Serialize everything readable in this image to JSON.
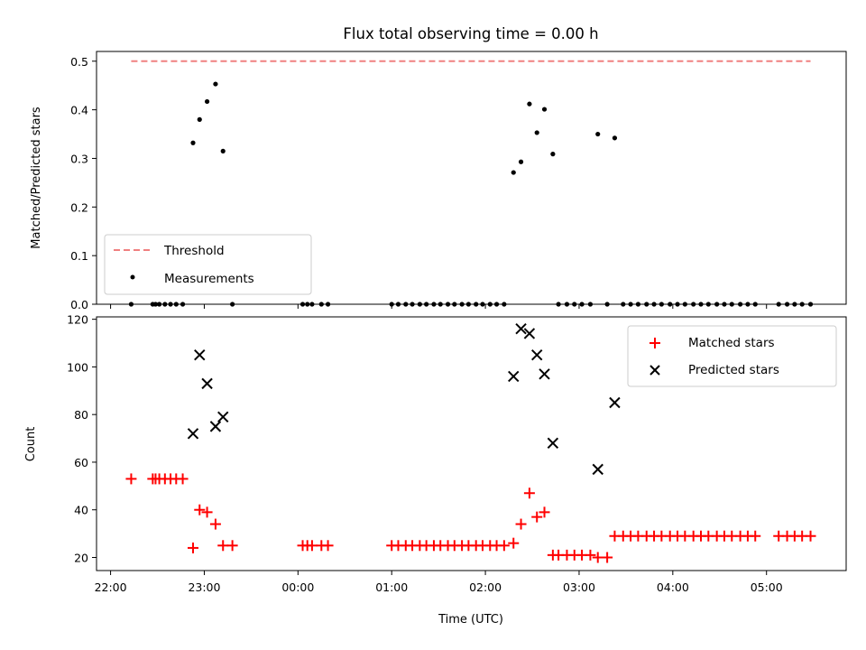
{
  "chart_data": [
    {
      "type": "scatter",
      "title": "Flux total observing time = 0.00 h",
      "xlabel": "",
      "ylabel": "Matched/Predicted stars",
      "ylim": [
        0,
        0.52
      ],
      "yticks": [
        "0.0",
        "0.1",
        "0.2",
        "0.3",
        "0.4",
        "0.5"
      ],
      "ytick_values": [
        0,
        0.1,
        0.2,
        0.3,
        0.4,
        0.5
      ],
      "xlim_hours": [
        21.85,
        29.85
      ],
      "legend_position": "lower-left",
      "threshold": {
        "name": "Threshold",
        "value": 0.5,
        "x_start": 22.22,
        "x_end": 29.47,
        "color": "#f08080"
      },
      "series": [
        {
          "name": "Measurements",
          "color": "#000000",
          "marker": "dot",
          "x": [
            22.22,
            22.45,
            22.48,
            22.52,
            22.58,
            22.64,
            22.7,
            22.77,
            22.88,
            22.95,
            23.03,
            23.12,
            23.2,
            23.3,
            24.05,
            24.1,
            24.15,
            24.25,
            24.32,
            25.0,
            25.07,
            25.15,
            25.22,
            25.3,
            25.37,
            25.45,
            25.52,
            25.6,
            25.67,
            25.75,
            25.82,
            25.9,
            25.97,
            26.05,
            26.12,
            26.2,
            26.3,
            26.38,
            26.47,
            26.55,
            26.63,
            26.72,
            26.78,
            26.87,
            26.95,
            27.03,
            27.12,
            27.2,
            27.3,
            27.38,
            27.47,
            27.55,
            27.63,
            27.72,
            27.8,
            27.88,
            27.97,
            28.05,
            28.13,
            28.22,
            28.3,
            28.38,
            28.47,
            28.55,
            28.63,
            28.72,
            28.8,
            28.88,
            29.13,
            29.22,
            29.3,
            29.38,
            29.47
          ],
          "y": [
            0,
            0,
            0,
            0,
            0,
            0,
            0,
            0,
            0.332,
            0.38,
            0.417,
            0.453,
            0.315,
            0,
            0,
            0,
            0,
            0,
            0,
            0,
            0,
            0,
            0,
            0,
            0,
            0,
            0,
            0,
            0,
            0,
            0,
            0,
            0,
            0,
            0,
            0,
            0.271,
            0.293,
            0.412,
            0.353,
            0.401,
            0.309,
            0,
            0,
            0,
            0,
            0,
            0.35,
            0,
            0.342,
            0,
            0,
            0,
            0,
            0,
            0,
            0,
            0,
            0,
            0,
            0,
            0,
            0,
            0,
            0,
            0,
            0,
            0,
            0,
            0,
            0,
            0,
            0
          ]
        }
      ]
    },
    {
      "type": "scatter",
      "title": "",
      "xlabel": "Time (UTC)",
      "ylabel": "Count",
      "ylim": [
        14.5,
        121
      ],
      "yticks": [
        "20",
        "40",
        "60",
        "80",
        "100",
        "120"
      ],
      "ytick_values": [
        20,
        40,
        60,
        80,
        100,
        120
      ],
      "xlim_hours": [
        21.85,
        29.85
      ],
      "xticks": [
        "22:00",
        "23:00",
        "00:00",
        "01:00",
        "02:00",
        "03:00",
        "04:00",
        "05:00"
      ],
      "xtick_hours": [
        22,
        23,
        24,
        25,
        26,
        27,
        28,
        29
      ],
      "legend_position": "top-right",
      "series": [
        {
          "name": "Matched stars",
          "color": "#ff0000",
          "marker": "plus",
          "x": [
            22.22,
            22.45,
            22.48,
            22.52,
            22.58,
            22.64,
            22.7,
            22.77,
            22.88,
            22.95,
            23.03,
            23.12,
            23.2,
            23.3,
            24.05,
            24.1,
            24.15,
            24.25,
            24.32,
            25.0,
            25.07,
            25.15,
            25.22,
            25.3,
            25.37,
            25.45,
            25.52,
            25.6,
            25.67,
            25.75,
            25.82,
            25.9,
            25.97,
            26.05,
            26.12,
            26.2,
            26.3,
            26.38,
            26.47,
            26.55,
            26.63,
            26.72,
            26.78,
            26.87,
            26.95,
            27.03,
            27.12,
            27.2,
            27.3,
            27.38,
            27.47,
            27.55,
            27.63,
            27.72,
            27.8,
            27.88,
            27.97,
            28.05,
            28.13,
            28.22,
            28.3,
            28.38,
            28.47,
            28.55,
            28.63,
            28.72,
            28.8,
            28.88,
            29.13,
            29.22,
            29.3,
            29.38,
            29.47
          ],
          "y": [
            53,
            53,
            53,
            53,
            53,
            53,
            53,
            53,
            24,
            40,
            39,
            34,
            25,
            25,
            25,
            25,
            25,
            25,
            25,
            25,
            25,
            25,
            25,
            25,
            25,
            25,
            25,
            25,
            25,
            25,
            25,
            25,
            25,
            25,
            25,
            25,
            26,
            34,
            47,
            37,
            39,
            21,
            21,
            21,
            21,
            21,
            21,
            20,
            20,
            29,
            29,
            29,
            29,
            29,
            29,
            29,
            29,
            29,
            29,
            29,
            29,
            29,
            29,
            29,
            29,
            29,
            29,
            29,
            29,
            29,
            29,
            29,
            29
          ]
        },
        {
          "name": "Predicted stars",
          "color": "#000000",
          "marker": "x",
          "x": [
            22.88,
            22.95,
            23.03,
            23.12,
            23.2,
            26.3,
            26.38,
            26.47,
            26.55,
            26.63,
            26.72,
            27.2,
            27.38
          ],
          "y": [
            72,
            105,
            93,
            75,
            79,
            96,
            116,
            114,
            105,
            97,
            68,
            57,
            85
          ]
        }
      ]
    }
  ]
}
